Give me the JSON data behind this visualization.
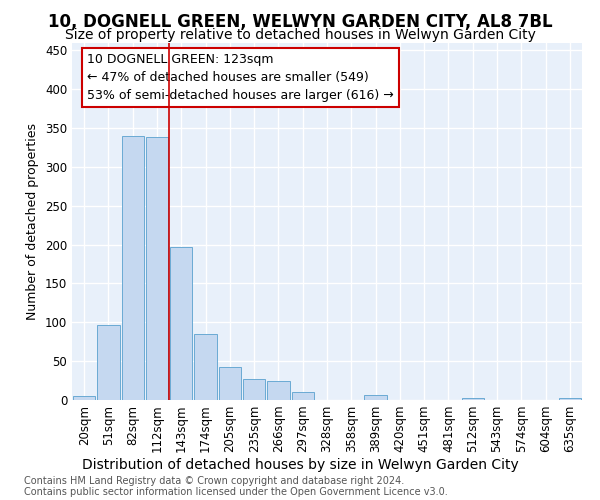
{
  "title": "10, DOGNELL GREEN, WELWYN GARDEN CITY, AL8 7BL",
  "subtitle": "Size of property relative to detached houses in Welwyn Garden City",
  "xlabel": "Distribution of detached houses by size in Welwyn Garden City",
  "ylabel": "Number of detached properties",
  "footnote1": "Contains HM Land Registry data © Crown copyright and database right 2024.",
  "footnote2": "Contains public sector information licensed under the Open Government Licence v3.0.",
  "bar_labels": [
    "20sqm",
    "51sqm",
    "82sqm",
    "112sqm",
    "143sqm",
    "174sqm",
    "205sqm",
    "235sqm",
    "266sqm",
    "297sqm",
    "328sqm",
    "358sqm",
    "389sqm",
    "420sqm",
    "451sqm",
    "481sqm",
    "512sqm",
    "543sqm",
    "574sqm",
    "604sqm",
    "635sqm"
  ],
  "bar_values": [
    5,
    97,
    340,
    338,
    197,
    85,
    42,
    27,
    25,
    10,
    0,
    0,
    6,
    0,
    0,
    0,
    2,
    0,
    0,
    0,
    2
  ],
  "bar_color": "#c5d8f0",
  "bar_edge_color": "#6aaad4",
  "background_color": "#e8f0fa",
  "grid_color": "#ffffff",
  "annotation_line1": "10 DOGNELL GREEN: 123sqm",
  "annotation_line2": "← 47% of detached houses are smaller (549)",
  "annotation_line3": "53% of semi-detached houses are larger (616) →",
  "annotation_box_color": "#ffffff",
  "annotation_box_edge": "#cc0000",
  "vline_x": 3.5,
  "vline_color": "#cc0000",
  "ylim": [
    0,
    460
  ],
  "yticks": [
    0,
    50,
    100,
    150,
    200,
    250,
    300,
    350,
    400,
    450
  ],
  "title_fontsize": 12,
  "subtitle_fontsize": 10,
  "xlabel_fontsize": 10,
  "ylabel_fontsize": 9,
  "tick_fontsize": 8.5,
  "annotation_fontsize": 9
}
